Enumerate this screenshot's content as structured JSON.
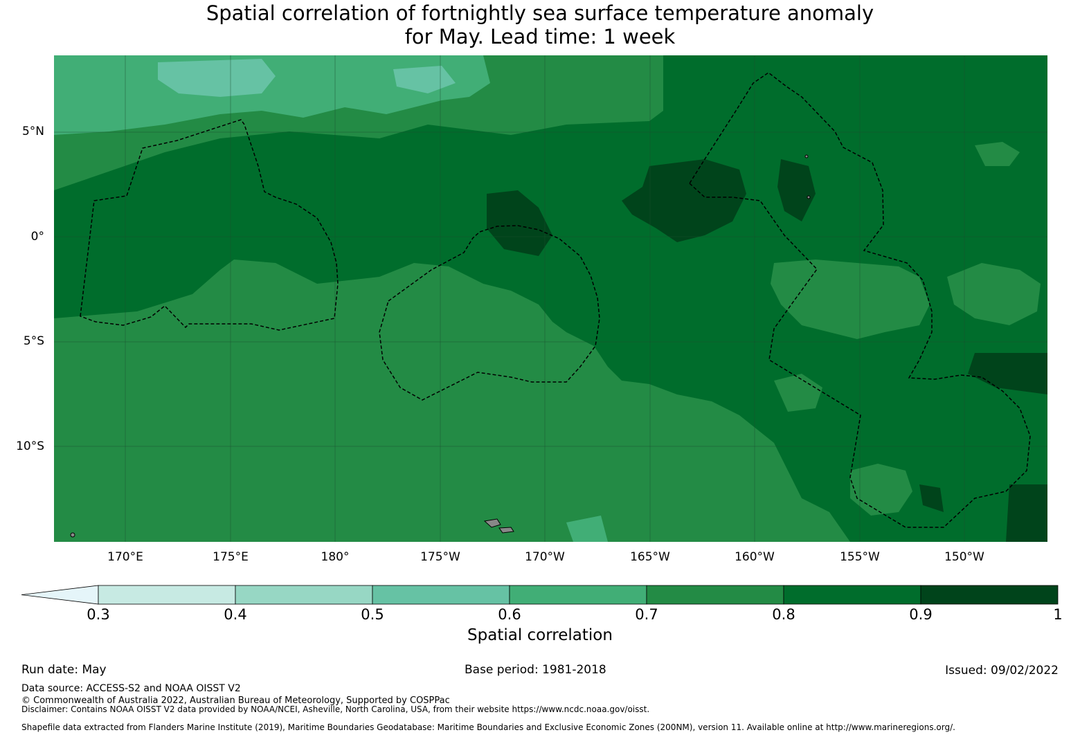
{
  "title_line1": "Spatial correlation of fortnightly sea surface temperature anomaly",
  "title_line2": "for May. Lead time: 1 week",
  "lat_labels": [
    "5°N",
    "0°",
    "5°S",
    "10°S"
  ],
  "lon_labels": [
    "170°E",
    "175°E",
    "180°",
    "175°W",
    "170°W",
    "165°W",
    "160°W",
    "155°W",
    "150°W"
  ],
  "colorbar": {
    "ticks": [
      "0.3",
      "0.4",
      "0.5",
      "0.6",
      "0.7",
      "0.8",
      "0.9",
      "1"
    ],
    "colors": [
      "#c7eae3",
      "#97d7c4",
      "#66c2a4",
      "#41ae76",
      "#238b45",
      "#006d2c",
      "#00441b"
    ],
    "under_color": "#e5f5f9",
    "label": "Spatial correlation"
  },
  "footer": {
    "run_date": "Run date: May",
    "base_period": "Base period: 1981-2018",
    "issued": "Issued: 09/02/2022",
    "data_source": "Data source: ACCESS-S2 and NOAA OISST V2",
    "copyright": "© Commonwealth of Australia 2022, Australian Bureau of Meteorology, Supported by COSPPac",
    "disclaimer": "Disclaimer: Contains NOAA OISST V2 data provided by NOAA/NCEI, Asheville, North Carolina, USA, from their website https://www.ncdc.noaa.gov/oisst.",
    "shapefile": "Shapefile data extracted from Flanders Marine Institute (2019), Maritime Boundaries Geodatabase: Maritime Boundaries and Exclusive Economic Zones (200NM), version 11. Available online at http://www.marineregions.org/."
  }
}
